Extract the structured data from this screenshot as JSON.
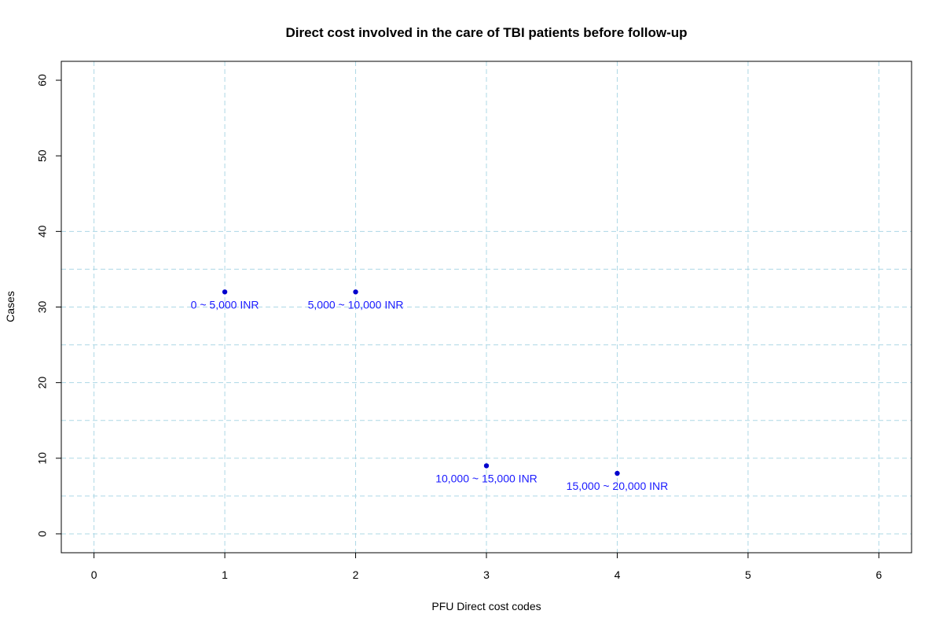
{
  "chart_data": {
    "type": "scatter",
    "title": "Direct cost involved in the care of TBI patients before follow-up",
    "xlabel": "PFU Direct cost codes",
    "ylabel": "Cases",
    "xlim": [
      -0.25,
      6.25
    ],
    "ylim": [
      -2.5,
      62.5
    ],
    "x_ticks": [
      0,
      1,
      2,
      3,
      4,
      5,
      6
    ],
    "y_ticks": [
      0,
      10,
      20,
      30,
      40,
      50,
      60
    ],
    "x_grid": [
      0,
      1,
      2,
      3,
      4,
      5,
      6
    ],
    "y_grid": [
      0,
      5,
      10,
      15,
      20,
      25,
      30,
      35,
      40
    ],
    "grid": true,
    "colors": {
      "point": "#0000cd",
      "label": "#1a1aff",
      "grid": "#add8e6"
    },
    "points": [
      {
        "x": 1,
        "y": 32,
        "label": "0 ~ 5,000 INR"
      },
      {
        "x": 2,
        "y": 32,
        "label": "5,000 ~ 10,000 INR"
      },
      {
        "x": 3,
        "y": 9,
        "label": "10,000 ~ 15,000 INR"
      },
      {
        "x": 4,
        "y": 8,
        "label": "15,000 ~ 20,000 INR"
      }
    ]
  }
}
